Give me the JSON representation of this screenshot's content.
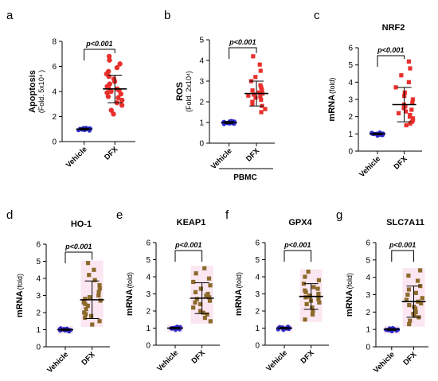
{
  "chart_data": [
    {
      "id": "a",
      "letter": "a",
      "type": "scatter",
      "title": "",
      "ylabel": "Apoptosis",
      "ylabel_sub": "(Fold. 5x10⁴ )",
      "ylim": [
        0,
        8
      ],
      "yticks": [
        0,
        2,
        4,
        6,
        8
      ],
      "categories": [
        "Vehicle",
        "DFX"
      ],
      "pvalue": "p<0.001",
      "group_label": "",
      "vehicle_color": "#2a2acc",
      "treated_color": "#e8302c",
      "treated_marker": "circle",
      "shaded": false,
      "series": [
        {
          "name": "Vehicle",
          "mean": 1.0,
          "sd": 0.07,
          "values": [
            0.88,
            0.91,
            0.93,
            0.95,
            0.96,
            0.97,
            0.98,
            0.99,
            1.0,
            1.0,
            1.01,
            1.02,
            1.03,
            1.04,
            1.05,
            1.06,
            1.08,
            1.1
          ]
        },
        {
          "name": "DFX",
          "mean": 4.2,
          "sd": 1.1,
          "values": [
            2.2,
            2.5,
            2.9,
            3.1,
            3.3,
            3.5,
            3.6,
            3.8,
            3.9,
            4.0,
            4.1,
            4.2,
            4.3,
            4.4,
            4.6,
            4.8,
            5.0,
            5.2,
            5.4,
            5.6,
            5.9,
            6.2,
            6.5,
            6.8
          ]
        }
      ]
    },
    {
      "id": "b",
      "letter": "b",
      "type": "scatter",
      "title": "",
      "ylabel": "ROS",
      "ylabel_sub": "(Fold. 2x10⁴)",
      "ylim": [
        0,
        5
      ],
      "yticks": [
        0,
        1,
        2,
        3,
        4,
        5
      ],
      "categories": [
        "Vehicle",
        "DFX"
      ],
      "pvalue": "p<0.001",
      "group_label": "PBMC",
      "vehicle_color": "#2a2acc",
      "treated_color": "#e8302c",
      "treated_marker": "square",
      "shaded": false,
      "series": [
        {
          "name": "Vehicle",
          "mean": 1.0,
          "sd": 0.05,
          "values": [
            0.92,
            0.94,
            0.95,
            0.96,
            0.97,
            0.98,
            0.99,
            1.0,
            1.0,
            1.01,
            1.02,
            1.03,
            1.04,
            1.05,
            1.06,
            1.08
          ]
        },
        {
          "name": "DFX",
          "mean": 2.4,
          "sd": 0.6,
          "values": [
            1.5,
            1.65,
            1.8,
            1.9,
            2.0,
            2.1,
            2.2,
            2.25,
            2.3,
            2.35,
            2.4,
            2.45,
            2.5,
            2.55,
            2.6,
            2.7,
            2.8,
            3.0,
            3.2,
            3.5,
            3.8,
            4.2
          ]
        }
      ]
    },
    {
      "id": "c",
      "letter": "c",
      "type": "scatter",
      "title": "NRF2",
      "ylabel": "mRNA",
      "ylabel_sub": "(fold)",
      "ylim": [
        0,
        6
      ],
      "yticks": [
        0,
        1,
        2,
        3,
        4,
        5,
        6
      ],
      "categories": [
        "Vehicle",
        "DFX"
      ],
      "pvalue": "p<0.001",
      "group_label": "",
      "vehicle_color": "#2a2acc",
      "treated_color": "#e8302c",
      "treated_marker": "square",
      "shaded": false,
      "series": [
        {
          "name": "Vehicle",
          "mean": 1.0,
          "sd": 0.05,
          "values": [
            0.9,
            0.93,
            0.95,
            0.96,
            0.97,
            0.98,
            0.99,
            1.0,
            1.0,
            1.01,
            1.02,
            1.03,
            1.04,
            1.06,
            1.08
          ]
        },
        {
          "name": "DFX",
          "mean": 2.7,
          "sd": 1.0,
          "values": [
            1.5,
            1.6,
            1.7,
            1.8,
            1.9,
            2.0,
            2.1,
            2.2,
            2.3,
            2.4,
            2.5,
            2.6,
            2.7,
            2.8,
            3.0,
            3.2,
            3.4,
            3.7,
            4.0,
            4.4,
            4.8,
            5.2
          ]
        }
      ]
    },
    {
      "id": "d",
      "letter": "d",
      "type": "scatter",
      "title": "HO-1",
      "ylabel": "mRNA",
      "ylabel_sub": "(fold)",
      "ylim": [
        0,
        6
      ],
      "yticks": [
        0,
        1,
        2,
        3,
        4,
        5,
        6
      ],
      "categories": [
        "Vehicle",
        "DFX"
      ],
      "pvalue": "p<0.001",
      "group_label": "",
      "vehicle_color": "#2a2acc",
      "treated_color": "#8c6a2a",
      "treated_marker": "square",
      "shaded": true,
      "shade_color": "#fbe3f0",
      "series": [
        {
          "name": "Vehicle",
          "mean": 1.0,
          "sd": 0.05,
          "values": [
            0.9,
            0.93,
            0.95,
            0.96,
            0.97,
            0.98,
            0.99,
            1.0,
            1.0,
            1.01,
            1.02,
            1.03,
            1.04,
            1.06,
            1.08
          ]
        },
        {
          "name": "DFX",
          "mean": 2.75,
          "sd": 1.1,
          "values": [
            1.3,
            1.5,
            1.7,
            1.8,
            1.9,
            2.0,
            2.2,
            2.4,
            2.5,
            2.6,
            2.7,
            2.8,
            2.9,
            3.0,
            3.2,
            3.4,
            3.6,
            3.9,
            4.2,
            4.5,
            4.9
          ]
        }
      ]
    },
    {
      "id": "e",
      "letter": "e",
      "type": "scatter",
      "title": "KEAP1",
      "ylabel": "mRNA",
      "ylabel_sub": "(fold)",
      "ylim": [
        0,
        6
      ],
      "yticks": [
        0,
        1,
        2,
        3,
        4,
        5,
        6
      ],
      "categories": [
        "Vehicle",
        "DFX"
      ],
      "pvalue": "p<0.001",
      "group_label": "",
      "vehicle_color": "#2a2acc",
      "treated_color": "#8c6a2a",
      "treated_marker": "square",
      "shaded": true,
      "shade_color": "#fbe3f0",
      "series": [
        {
          "name": "Vehicle",
          "mean": 1.0,
          "sd": 0.05,
          "values": [
            0.9,
            0.93,
            0.95,
            0.96,
            0.97,
            0.98,
            0.99,
            1.0,
            1.0,
            1.01,
            1.02,
            1.03,
            1.04,
            1.06,
            1.08
          ]
        },
        {
          "name": "DFX",
          "mean": 2.75,
          "sd": 0.9,
          "values": [
            1.4,
            1.6,
            1.8,
            1.9,
            2.0,
            2.2,
            2.4,
            2.5,
            2.6,
            2.7,
            2.8,
            2.9,
            3.0,
            3.1,
            3.3,
            3.5,
            3.7,
            3.9,
            4.2,
            4.5
          ]
        }
      ]
    },
    {
      "id": "f",
      "letter": "f",
      "type": "scatter",
      "title": "GPX4",
      "ylabel": "mRNA",
      "ylabel_sub": "(fold)",
      "ylim": [
        0,
        6
      ],
      "yticks": [
        0,
        1,
        2,
        3,
        4,
        5,
        6
      ],
      "categories": [
        "Vehicle",
        "DFX"
      ],
      "pvalue": "p<0.001",
      "group_label": "",
      "vehicle_color": "#2a2acc",
      "treated_color": "#8c6a2a",
      "treated_marker": "square",
      "shaded": true,
      "shade_color": "#fbe3f0",
      "series": [
        {
          "name": "Vehicle",
          "mean": 1.0,
          "sd": 0.05,
          "values": [
            0.9,
            0.93,
            0.95,
            0.96,
            0.97,
            0.98,
            0.99,
            1.0,
            1.0,
            1.01,
            1.02,
            1.03,
            1.04,
            1.06,
            1.08
          ]
        },
        {
          "name": "DFX",
          "mean": 2.85,
          "sd": 0.75,
          "values": [
            1.5,
            1.8,
            2.0,
            2.2,
            2.4,
            2.5,
            2.6,
            2.7,
            2.8,
            2.85,
            2.9,
            3.0,
            3.1,
            3.2,
            3.3,
            3.4,
            3.6,
            3.8,
            4.0,
            4.3
          ]
        }
      ]
    },
    {
      "id": "g",
      "letter": "g",
      "type": "scatter",
      "title": "SLC7A11",
      "ylabel": "mRNA",
      "ylabel_sub": "(fold)",
      "ylim": [
        0,
        6
      ],
      "yticks": [
        0,
        1,
        2,
        3,
        4,
        5,
        6
      ],
      "categories": [
        "Vehicle",
        "DFX"
      ],
      "pvalue": "p<0.001",
      "group_label": "",
      "vehicle_color": "#2a2acc",
      "treated_color": "#8c6a2a",
      "treated_marker": "square",
      "shaded": true,
      "shade_color": "#fbe3f0",
      "series": [
        {
          "name": "Vehicle",
          "mean": 1.0,
          "sd": 0.05,
          "values": [
            0.9,
            0.93,
            0.95,
            0.96,
            0.97,
            0.98,
            0.99,
            1.0,
            1.0,
            1.01,
            1.02,
            1.03,
            1.04,
            1.06,
            1.08
          ]
        },
        {
          "name": "DFX",
          "mean": 2.6,
          "sd": 0.9,
          "values": [
            1.3,
            1.5,
            1.7,
            1.8,
            1.9,
            2.0,
            2.2,
            2.3,
            2.4,
            2.5,
            2.6,
            2.7,
            2.8,
            3.0,
            3.1,
            3.3,
            3.5,
            3.8,
            4.1,
            4.4
          ]
        }
      ]
    }
  ]
}
